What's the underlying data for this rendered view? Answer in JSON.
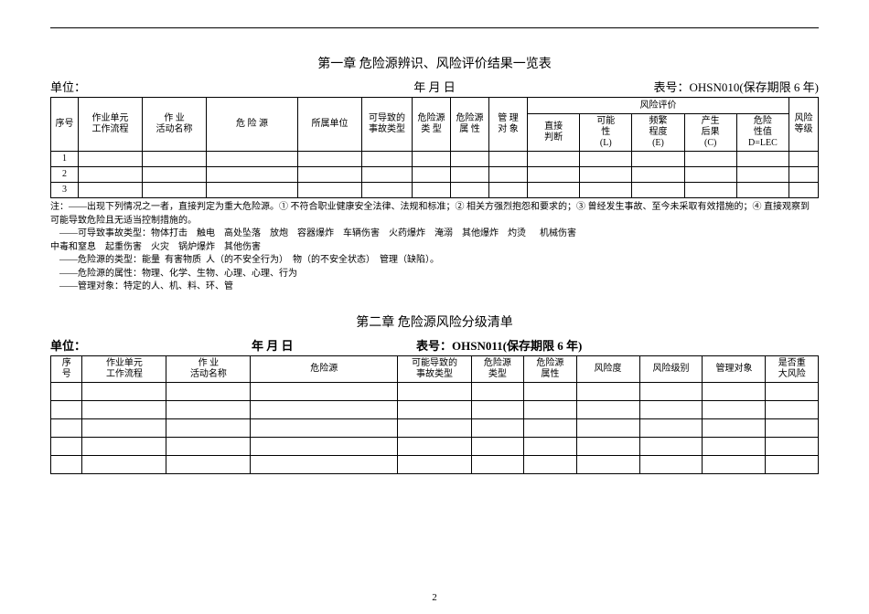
{
  "page_number": "2",
  "chapter1": {
    "title": "第一章  危险源辨识、风险评价结果一览表",
    "unit_label": "单位：",
    "date_label": "年    月    日",
    "form_no": "表号：OHSN010(保存期限 6 年)",
    "headers": {
      "seq": "序号",
      "work_unit": "作业单元\n工作流程",
      "activity": "作  业\n活动名称",
      "hazard": "危 险 源",
      "dept": "所属单位",
      "accident": "可导致的\n事故类型",
      "hazard_type": "危险源\n类  型",
      "hazard_attr": "危险源\n属  性",
      "mgmt": "管 理\n对 象",
      "eval_group": "风险评价",
      "direct": "直接\n判断",
      "L": "可能\n性\n(L)",
      "E": "频繁\n程度\n(E)",
      "C": "产生\n后果\n(C)",
      "D": "危险\n性值\nD=LEC",
      "level": "风险\n等级"
    },
    "rows": [
      "1",
      "2",
      "3"
    ],
    "notes": "注：——出现下列情况之一者，直接判定为重大危险源。① 不符合职业健康安全法律、法规和标准；② 相关方强烈抱怨和要求的；③ 曾经发生事故、至今未采取有效措施的；④ 直接观察到\n可能导致危险且无适当控制措施的。\n    ——可导致事故类型：物体打击    触电    高处坠落    放炮    容器爆炸    车辆伤害    火药爆炸    淹溺    其他爆炸    灼烫      机械伤害\n中毒和窒息    起重伤害    火灾    锅炉爆炸    其他伤害\n    ——危险源的类型：能量  有害物质  人（的不安全行为）  物（的不安全状态）  管理（缺陷）。\n    ——危险源的属性：物理、化学、生物、心理、心理、行为\n    ——管理对象：特定的人、机、料、环、管"
  },
  "chapter2": {
    "title": "第二章  危险源风险分级清单",
    "unit_label": "单位：",
    "date_label": "年    月    日",
    "form_no": "表号：OHSN011(保存期限 6 年)",
    "headers": {
      "seq": "序\n号",
      "work_unit": "作业单元\n工作流程",
      "activity": "作    业\n活动名称",
      "hazard": "危险源",
      "accident": "可能导致的\n事故类型",
      "hazard_type": "危险源\n类型",
      "hazard_attr": "危险源\n属性",
      "risk": "风险度",
      "risk_level": "风险级别",
      "mgmt": "管理对象",
      "major": "是否重\n大风险"
    },
    "row_count": 5
  }
}
